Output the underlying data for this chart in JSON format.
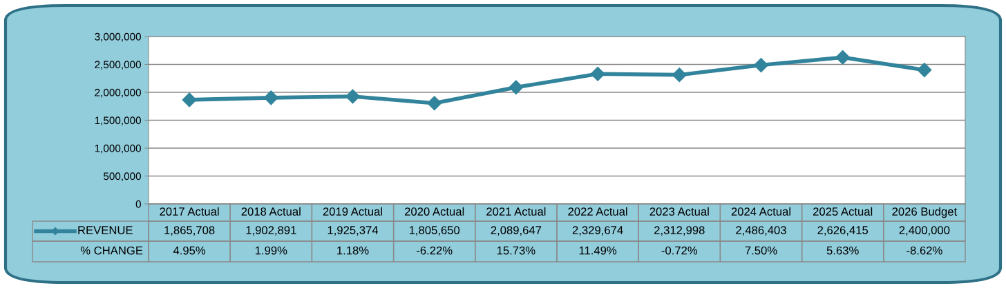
{
  "chart_data": {
    "type": "line",
    "categories": [
      "2017 Actual",
      "2018 Actual",
      "2019 Actual",
      "2020 Actual",
      "2021 Actual",
      "2022 Actual",
      "2023 Actual",
      "2024 Actual",
      "2025 Actual",
      "2026 Budget"
    ],
    "series": [
      {
        "name": "REVENUE",
        "color": "#31849b",
        "values": [
          1865708,
          1902891,
          1925374,
          1805650,
          2089647,
          2329674,
          2312998,
          2486403,
          2626415,
          2400000
        ],
        "value_labels": [
          "1,865,708",
          "1,902,891",
          "1,925,374",
          "1,805,650",
          "2,089,647",
          "2,329,674",
          "2,312,998",
          "2,486,403",
          "2,626,415",
          "2,400,000"
        ]
      }
    ],
    "ylim": [
      0,
      3000000
    ],
    "yticks": [
      0,
      {
        "value": 500000,
        "label": "500,000"
      },
      {
        "value": 1000000,
        "label": "1,000,000"
      },
      {
        "value": 1500000,
        "label": "1,500,000"
      },
      {
        "value": 2000000,
        "label": "2,000,000"
      },
      {
        "value": 2500000,
        "label": "2,500,000"
      },
      {
        "value": 3000000,
        "label": "3,000,000"
      }
    ],
    "grid": "y",
    "marker": "diamond",
    "line_style": "solid",
    "legend": "bottom left",
    "annotations": [
      "% CHANGE",
      "4.95%",
      "1.99%",
      "1.18%",
      "-6.22%",
      "15.73%",
      "11.49%",
      "-0.72%",
      "7.50%",
      "5.63%",
      "-8.62%"
    ]
  }
}
